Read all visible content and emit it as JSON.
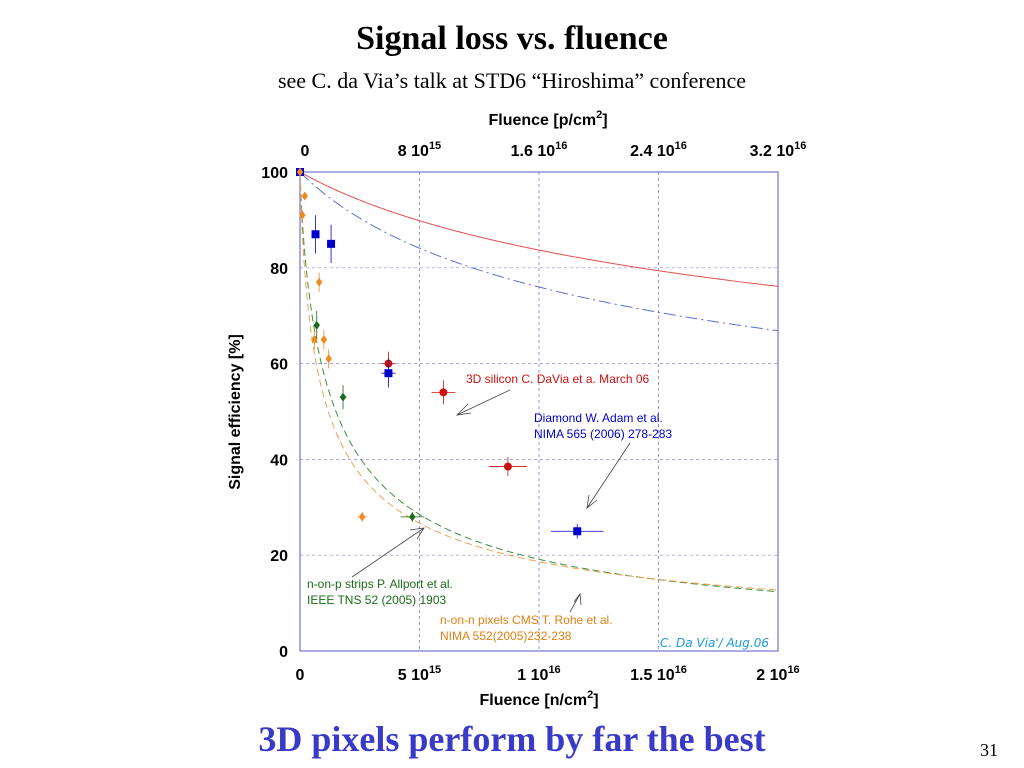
{
  "slide": {
    "title": "Signal loss vs. fluence",
    "subtitle": "see C. da Via’s talk at STD6 “Hiroshima” conference",
    "bottom_text": "3D pixels perform by far the best",
    "page_number": "31"
  },
  "chart_data": {
    "type": "scatter",
    "title": "",
    "xlabel": "Fluence [n/cm²]",
    "x2label": "Fluence [p/cm²]",
    "ylabel": "Signal efficiency [%]",
    "xlim": [
      0,
      2e+16
    ],
    "ylim": [
      0,
      100
    ],
    "grid": true,
    "x_ticks": [
      {
        "value": 0,
        "mant": "0",
        "exp": ""
      },
      {
        "value": 5000000000000000.0,
        "mant": "5 10",
        "exp": "15"
      },
      {
        "value": 1e+16,
        "mant": "1 10",
        "exp": "16"
      },
      {
        "value": 1.5e+16,
        "mant": "1.5 10",
        "exp": "16"
      },
      {
        "value": 2e+16,
        "mant": "2 10",
        "exp": "16"
      }
    ],
    "x2_ticks": [
      {
        "value": 0,
        "mant": "0",
        "exp": ""
      },
      {
        "value": 8000000000000000.0,
        "mant": "8 10",
        "exp": "15"
      },
      {
        "value": 1.6e+16,
        "mant": "1.6 10",
        "exp": "16"
      },
      {
        "value": 2.4e+16,
        "mant": "2.4 10",
        "exp": "16"
      },
      {
        "value": 3.2e+16,
        "mant": "3.2 10",
        "exp": "16"
      }
    ],
    "x2_max": 3.2e+16,
    "y_ticks": [
      0,
      20,
      40,
      60,
      80,
      100
    ],
    "series": [
      {
        "key": "3d-silicon",
        "marker": "circle",
        "color": "#cc1111",
        "points": [
          {
            "x": 0,
            "y": 100,
            "xerr": 0,
            "yerr": 0
          },
          {
            "x": 3700000000000000.0,
            "y": 60,
            "xerr": 300000000000000.0,
            "yerr": 2.5
          },
          {
            "x": 6000000000000000.0,
            "y": 54,
            "xerr": 500000000000000.0,
            "yerr": 2.5
          },
          {
            "x": 8700000000000000.0,
            "y": 38.5,
            "xerr": 800000000000000.0,
            "yerr": 2
          }
        ]
      },
      {
        "key": "diamond",
        "marker": "square",
        "color": "#0000cc",
        "points": [
          {
            "x": 0,
            "y": 100,
            "xerr": 0,
            "yerr": 0
          },
          {
            "x": 650000000000000.0,
            "y": 87,
            "xerr": 100000000000000.0,
            "yerr": 4
          },
          {
            "x": 1300000000000000.0,
            "y": 85,
            "xerr": 150000000000000.0,
            "yerr": 4
          },
          {
            "x": 3700000000000000.0,
            "y": 58,
            "xerr": 300000000000000.0,
            "yerr": 3
          },
          {
            "x": 1.16e+16,
            "y": 25,
            "xerr": 1100000000000000.0,
            "yerr": 1.5
          }
        ]
      },
      {
        "key": "n-on-p",
        "marker": "diamond",
        "color": "#1a6b1a",
        "points": [
          {
            "x": 700000000000000.0,
            "y": 68,
            "xerr": 100000000000000.0,
            "yerr": 3
          },
          {
            "x": 1800000000000000.0,
            "y": 53,
            "xerr": 150000000000000.0,
            "yerr": 2.5
          },
          {
            "x": 4700000000000000.0,
            "y": 28,
            "xerr": 500000000000000.0,
            "yerr": 1
          }
        ]
      },
      {
        "key": "n-on-n",
        "marker": "diamond",
        "color": "#f08a1c",
        "points": [
          {
            "x": 0,
            "y": 100,
            "xerr": 0,
            "yerr": 0
          },
          {
            "x": 100000000000000.0,
            "y": 91,
            "xerr": 0,
            "yerr": 0
          },
          {
            "x": 200000000000000.0,
            "y": 95,
            "xerr": 0,
            "yerr": 0
          },
          {
            "x": 600000000000000.0,
            "y": 65,
            "xerr": 100000000000000.0,
            "yerr": 2
          },
          {
            "x": 800000000000000.0,
            "y": 77,
            "xerr": 100000000000000.0,
            "yerr": 2
          },
          {
            "x": 1000000000000000.0,
            "y": 65,
            "xerr": 100000000000000.0,
            "yerr": 2
          },
          {
            "x": 1200000000000000.0,
            "y": 61,
            "xerr": 100000000000000.0,
            "yerr": 2
          },
          {
            "x": 2600000000000000.0,
            "y": 28,
            "xerr": 200000000000000.0,
            "yerr": 1
          }
        ]
      }
    ],
    "fits": [
      {
        "key": "3d-silicon-fit",
        "color": "#e05050",
        "dash": "",
        "a": 7500000000000000.0,
        "p": 1.0,
        "q": 0.21
      },
      {
        "key": "diamond-fit",
        "color": "#5b6fd6",
        "dash": "12,4,2,4",
        "a": 5000000000000000.0,
        "p": 1.0,
        "q": 0.25
      },
      {
        "key": "n-on-p-fit",
        "color": "#3f8f3f",
        "dash": "7,4",
        "a": 1250000000000000.0,
        "p": 0.8,
        "q": 0.9
      },
      {
        "key": "n-on-n-fit",
        "color": "#f0a050",
        "dash": "7,4",
        "a": 700000000000000.0,
        "p": 0.8,
        "q": 0.75
      }
    ],
    "annotations": {
      "silicon": {
        "text": "3D silicon C. DaVia et a. March 06",
        "color": "#cc1111"
      },
      "diamond_1": {
        "text": "Diamond W. Adam et al.",
        "color": "#0000cc"
      },
      "diamond_2": {
        "text": "NIMA 565 (2006) 278-283",
        "color": "#0000cc"
      },
      "nonp_1": {
        "text": "n-on-p strips P. Allport et al.",
        "color": "#1a6b1a"
      },
      "nonp_2": {
        "text": "IEEE TNS 52 (2005) 1903",
        "color": "#1a6b1a"
      },
      "nonn_1": {
        "text": "n-on-n pixels CMS T. Rohe et al.",
        "color": "#e08010"
      },
      "nonn_2": {
        "text": "NIMA 552(2005)232-238",
        "color": "#e08010"
      },
      "credit": "C. Da Via'/ Aug.06"
    }
  }
}
